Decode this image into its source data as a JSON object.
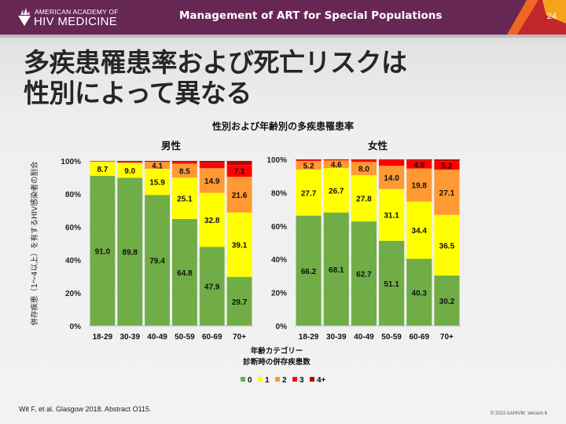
{
  "header": {
    "logo_top": "AMERICAN ACADEMY OF",
    "logo_bottom": "HIV MEDICINE",
    "title": "Management of ART for Special Populations",
    "page_number": "24",
    "colors": {
      "background": "#662753",
      "accent_orange": "#f26522",
      "accent_red": "#c1272d",
      "accent_yellow": "#f7a21b"
    }
  },
  "slide": {
    "title_line1": "多疾患罹患率および死亡リスクは",
    "title_line2": "性別によって異なる"
  },
  "chart_data": {
    "type": "bar",
    "stacked": true,
    "title": "性別および年齢別の多疾患罹患率",
    "ylabel": "併存疾患（1〜4以上）を有するHIV感染者の割合",
    "xlabel_line1": "年齢カテゴリー",
    "xlabel_line2": "診断時の併存疾患数",
    "ylim": [
      0,
      100
    ],
    "yticks": [
      "0%",
      "20%",
      "40%",
      "60%",
      "80%",
      "100%"
    ],
    "grid": true,
    "legend_position": "bottom",
    "categories": [
      "18-29",
      "30-39",
      "40-49",
      "50-59",
      "60-69",
      "70+"
    ],
    "legend": [
      {
        "name": "0",
        "color": "#70ad47"
      },
      {
        "name": "1",
        "color": "#ffff00"
      },
      {
        "name": "2",
        "color": "#ff9933"
      },
      {
        "name": "3",
        "color": "#ff0000"
      },
      {
        "name": "4+",
        "color": "#c00000"
      }
    ],
    "panels": [
      {
        "name": "男性",
        "series": [
          {
            "name": "0",
            "values": [
              91.0,
              89.8,
              79.4,
              64.8,
              47.9,
              29.7
            ],
            "labeled": [
              true,
              true,
              true,
              true,
              true,
              true
            ]
          },
          {
            "name": "1",
            "values": [
              8.7,
              9.0,
              15.9,
              25.1,
              32.8,
              39.1
            ],
            "labeled": [
              true,
              true,
              true,
              true,
              true,
              true
            ]
          },
          {
            "name": "2",
            "values": [
              0.2,
              0.3,
              4.1,
              8.5,
              14.9,
              21.6
            ],
            "labeled": [
              false,
              false,
              true,
              true,
              true,
              true
            ]
          },
          {
            "name": "3",
            "values": [
              0.1,
              0.7,
              0.5,
              1.0,
              3.3,
              7.1
            ],
            "labeled": [
              false,
              false,
              false,
              false,
              false,
              true
            ]
          },
          {
            "name": "4+",
            "values": [
              0.0,
              0.2,
              0.1,
              0.6,
              1.1,
              2.5
            ],
            "labeled": [
              false,
              false,
              false,
              false,
              false,
              false
            ]
          }
        ]
      },
      {
        "name": "女性",
        "series": [
          {
            "name": "0",
            "values": [
              66.2,
              68.1,
              62.7,
              51.1,
              40.3,
              30.2
            ],
            "labeled": [
              true,
              true,
              true,
              true,
              true,
              true
            ]
          },
          {
            "name": "1",
            "values": [
              27.7,
              26.7,
              27.8,
              31.1,
              34.4,
              36.5
            ],
            "labeled": [
              true,
              true,
              true,
              true,
              true,
              true
            ]
          },
          {
            "name": "2",
            "values": [
              5.2,
              4.6,
              8.0,
              14.0,
              19.8,
              27.1
            ],
            "labeled": [
              true,
              true,
              true,
              true,
              true,
              true
            ]
          },
          {
            "name": "3",
            "values": [
              0.9,
              0.6,
              1.5,
              3.8,
              4.9,
              5.2
            ],
            "labeled": [
              false,
              false,
              false,
              false,
              true,
              true
            ]
          },
          {
            "name": "4+",
            "values": [
              0.0,
              0.0,
              0.0,
              0.0,
              0.6,
              1.0
            ],
            "labeled": [
              false,
              false,
              false,
              false,
              false,
              false
            ]
          }
        ]
      }
    ]
  },
  "footer": {
    "citation": "Wit F, et al. Glasgow 2018. Abstract O115.",
    "copyright": "© 2022 AAHIVM. Version 6"
  }
}
